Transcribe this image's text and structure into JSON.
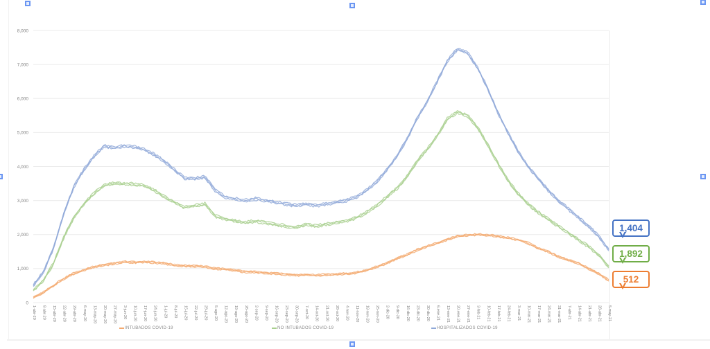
{
  "page": {
    "background": "#ffffff"
  },
  "chart_data": {
    "type": "line",
    "title": "",
    "xlabel": "",
    "ylabel": "",
    "ylim": [
      0,
      8000
    ],
    "ytick_step": 1000,
    "grid": true,
    "legend_position": "bottom",
    "y_tick_labels": [
      "0",
      "1,000",
      "2,000",
      "3,000",
      "4,000",
      "5,000",
      "6,000",
      "7,000",
      "8,000"
    ],
    "x": [
      "1-abr-20",
      "8-abr-20",
      "15-abr-20",
      "22-abr-20",
      "29-abr-20",
      "6-may-20",
      "13-may-20",
      "20-may-20",
      "27-may-20",
      "3-jun-20",
      "10-jun-20",
      "17-jun-20",
      "24-jun-20",
      "1-jul-20",
      "8-jul-20",
      "15-jul-20",
      "22-jul-20",
      "29-jul-20",
      "5-ago-20",
      "12-ago-20",
      "19-ago-20",
      "26-ago-20",
      "2-sep-20",
      "9-sep-20",
      "16-sep-20",
      "23-sep-20",
      "30-sep-20",
      "7-oct-20",
      "14-oct-20",
      "21-oct-20",
      "28-oct-20",
      "4-nov-20",
      "11-nov-20",
      "18-nov-20",
      "25-nov-20",
      "2-dic-20",
      "9-dic-20",
      "16-dic-20",
      "23-dic-20",
      "30-dic-20",
      "6-ene-21",
      "13-ene-21",
      "20-ene-21",
      "27-ene-21",
      "3-feb-21",
      "10-feb-21",
      "17-feb-21",
      "24-feb-21",
      "3-mar-21",
      "10-mar-21",
      "17-mar-21",
      "24-mar-21",
      "31-mar-21",
      "7-abr-21",
      "14-abr-21",
      "21-abr-21",
      "28-abr-21",
      "5-may-21"
    ],
    "series": [
      {
        "id": "hospitalizados",
        "name": "HOSPITALIZADOS COVID-19",
        "color": "#8fa8d8",
        "values": [
          500,
          900,
          1600,
          2600,
          3400,
          3900,
          4300,
          4600,
          4550,
          4600,
          4580,
          4500,
          4350,
          4150,
          3900,
          3650,
          3650,
          3700,
          3300,
          3100,
          3050,
          3000,
          3050,
          3000,
          2950,
          2900,
          2850,
          2900,
          2850,
          2900,
          2950,
          3000,
          3100,
          3300,
          3550,
          3900,
          4300,
          4800,
          5400,
          5900,
          6500,
          7100,
          7450,
          7350,
          6900,
          6300,
          5600,
          5000,
          4450,
          4000,
          3650,
          3300,
          3000,
          2750,
          2500,
          2250,
          1950,
          1550
        ]
      },
      {
        "id": "no-intubados",
        "name": "NO INTUBADOS COVID-19",
        "color": "#a8cf8e",
        "values": [
          350,
          650,
          1150,
          1900,
          2500,
          2900,
          3200,
          3450,
          3500,
          3500,
          3480,
          3450,
          3300,
          3100,
          2950,
          2800,
          2850,
          2900,
          2550,
          2450,
          2400,
          2350,
          2400,
          2350,
          2300,
          2250,
          2200,
          2300,
          2250,
          2300,
          2350,
          2400,
          2500,
          2650,
          2850,
          3100,
          3350,
          3700,
          4150,
          4500,
          4900,
          5400,
          5600,
          5500,
          5150,
          4650,
          4100,
          3600,
          3200,
          2900,
          2650,
          2450,
          2250,
          2050,
          1850,
          1650,
          1400,
          1050
        ]
      },
      {
        "id": "intubados",
        "name": "INTUBADOS COVID-19",
        "color": "#f3a96f",
        "values": [
          150,
          300,
          500,
          700,
          850,
          950,
          1050,
          1100,
          1150,
          1200,
          1180,
          1200,
          1180,
          1150,
          1100,
          1080,
          1070,
          1050,
          1000,
          980,
          950,
          900,
          900,
          870,
          850,
          830,
          800,
          820,
          800,
          820,
          830,
          850,
          880,
          950,
          1050,
          1150,
          1300,
          1400,
          1550,
          1650,
          1750,
          1850,
          1950,
          1980,
          2000,
          1980,
          1950,
          1900,
          1850,
          1750,
          1600,
          1500,
          1350,
          1250,
          1150,
          1000,
          850,
          650
        ]
      }
    ]
  },
  "legend": {
    "items": [
      {
        "label": "INTUBADOS COVID-19",
        "color": "#f3a96f"
      },
      {
        "label": "NO INTUBADOS COVID-19",
        "color": "#a8cf8e"
      },
      {
        "label": "HOSPITALIZADOS COVID-19",
        "color": "#8fa8d8"
      }
    ]
  },
  "callouts": [
    {
      "value": "1,404",
      "accent": "#4472c4",
      "series": "HOSPITALIZADOS COVID-19"
    },
    {
      "value": "1,892",
      "accent": "#70ad47",
      "series": "NO INTUBADOS COVID-19"
    },
    {
      "value": "512",
      "accent": "#ed7d31",
      "series": "INTUBADOS COVID-19"
    }
  ]
}
